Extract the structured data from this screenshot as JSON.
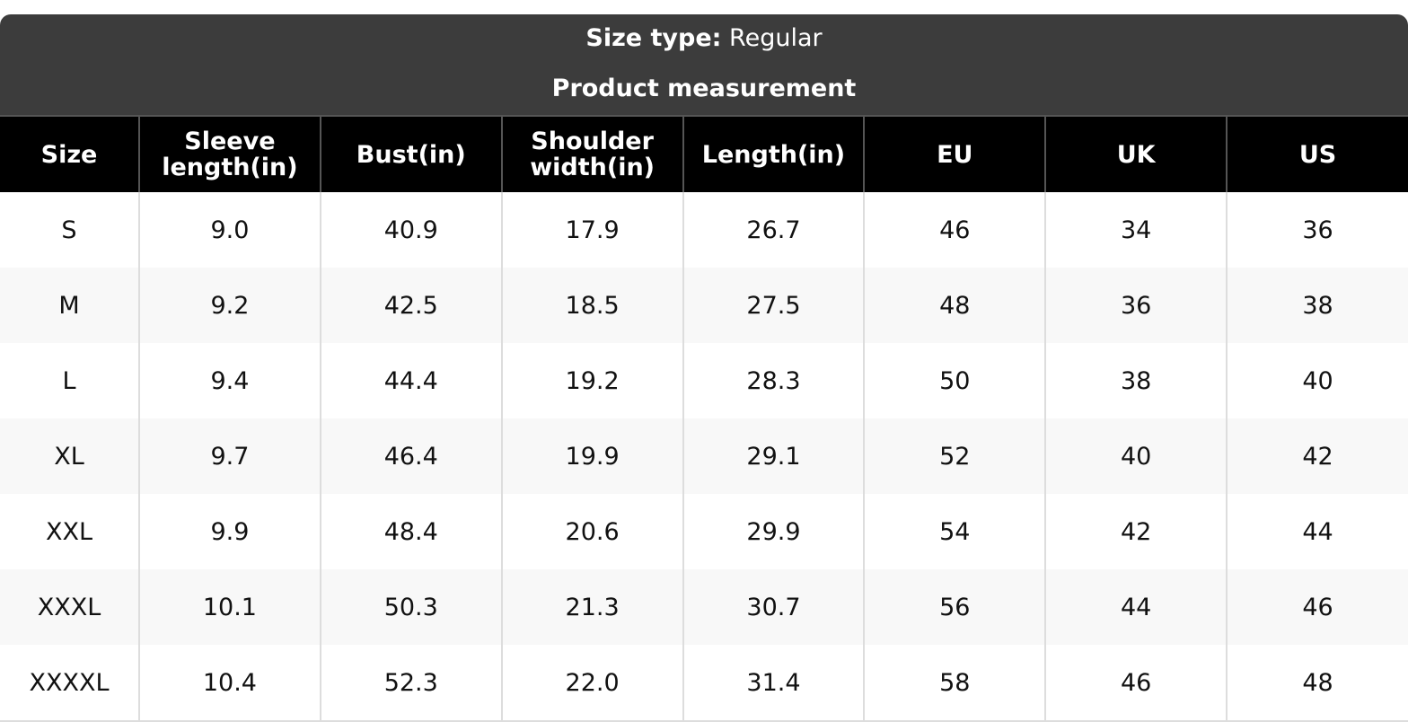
{
  "header": {
    "size_type_label": "Size type:",
    "size_type_value": "Regular",
    "title": "Product measurement"
  },
  "table": {
    "columns": [
      "Size",
      "Sleeve length(in)",
      "Bust(in)",
      "Shoulder width(in)",
      "Length(in)",
      "EU",
      "UK",
      "US"
    ],
    "rows": [
      [
        "S",
        "9.0",
        "40.9",
        "17.9",
        "26.7",
        "46",
        "34",
        "36"
      ],
      [
        "M",
        "9.2",
        "42.5",
        "18.5",
        "27.5",
        "48",
        "36",
        "38"
      ],
      [
        "L",
        "9.4",
        "44.4",
        "19.2",
        "28.3",
        "50",
        "38",
        "40"
      ],
      [
        "XL",
        "9.7",
        "46.4",
        "19.9",
        "29.1",
        "52",
        "40",
        "42"
      ],
      [
        "XXL",
        "9.9",
        "48.4",
        "20.6",
        "29.9",
        "54",
        "42",
        "44"
      ],
      [
        "XXXL",
        "10.1",
        "50.3",
        "21.3",
        "30.7",
        "56",
        "44",
        "46"
      ],
      [
        "XXXXL",
        "10.4",
        "52.3",
        "22.0",
        "31.4",
        "58",
        "46",
        "48"
      ]
    ]
  }
}
